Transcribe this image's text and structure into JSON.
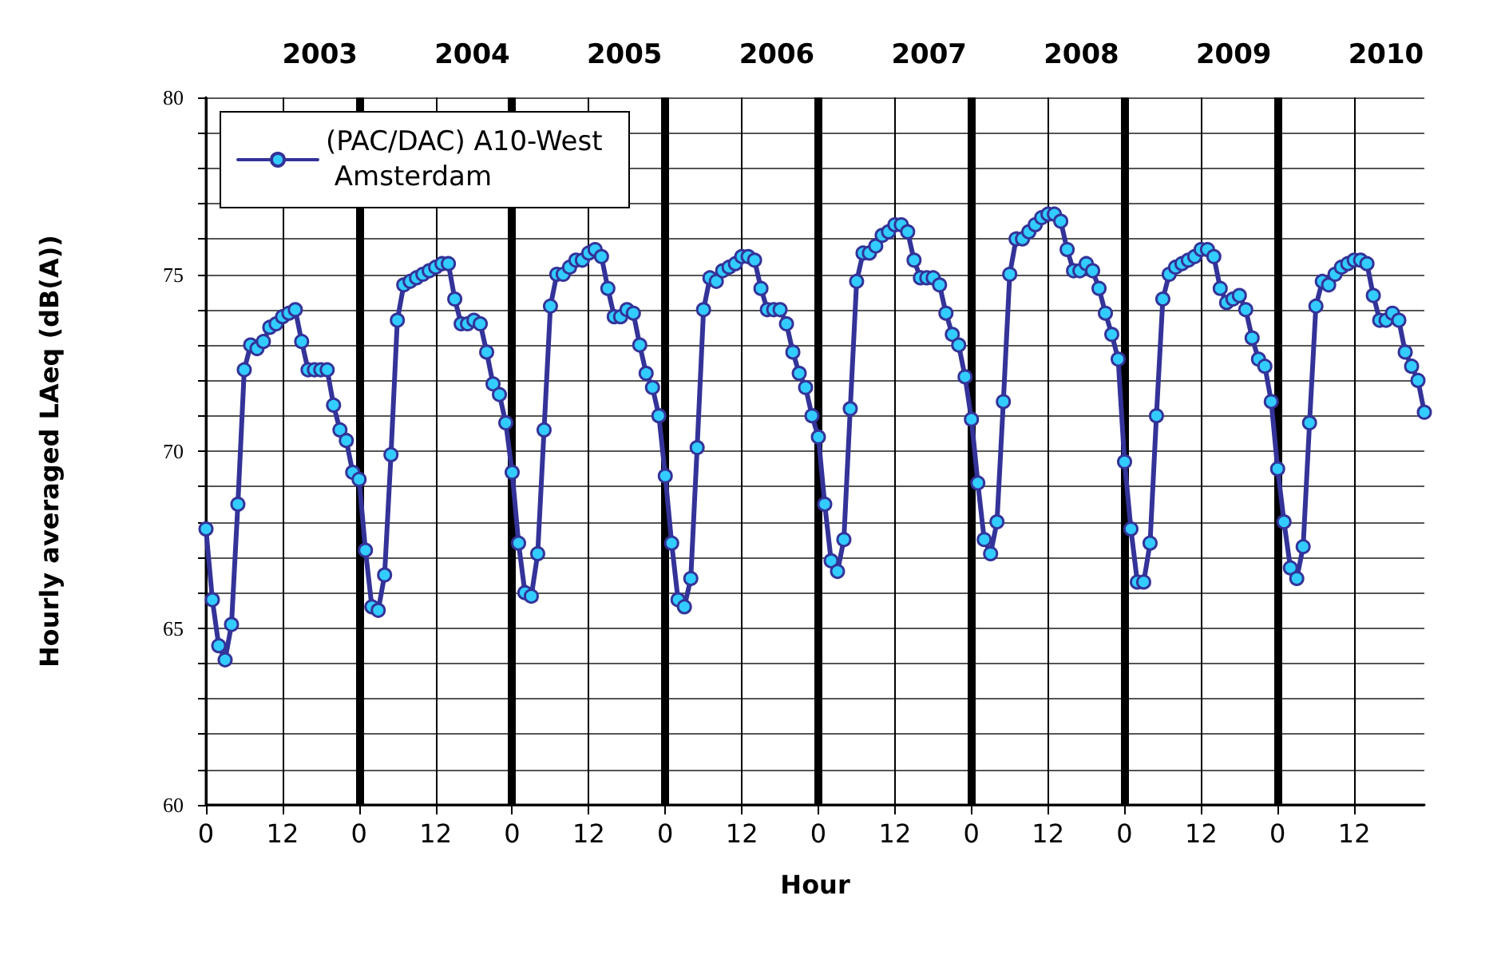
{
  "chart_data": {
    "type": "line",
    "xlabel": "Hour",
    "ylabel": "Hourly averaged LAeq (dB(A))",
    "annotations": [
      "2003",
      "2004",
      "2005",
      "2006",
      "2007",
      "2008",
      "2009",
      "2010"
    ],
    "categories": [
      "0",
      null,
      null,
      null,
      null,
      null,
      null,
      null,
      null,
      null,
      null,
      null,
      "12",
      null,
      null,
      null,
      null,
      null,
      null,
      null,
      null,
      null,
      null,
      null,
      "0",
      null,
      null,
      null,
      null,
      null,
      null,
      null,
      null,
      null,
      null,
      null,
      "12",
      null,
      null,
      null,
      null,
      null,
      null,
      null,
      null,
      null,
      null,
      null,
      "0",
      null,
      null,
      null,
      null,
      null,
      null,
      null,
      null,
      null,
      null,
      null,
      "12",
      null,
      null,
      null,
      null,
      null,
      null,
      null,
      null,
      null,
      null,
      null,
      "0",
      null,
      null,
      null,
      null,
      null,
      null,
      null,
      null,
      null,
      null,
      null,
      "12",
      null,
      null,
      null,
      null,
      null,
      null,
      null,
      null,
      null,
      null,
      null,
      "0",
      null,
      null,
      null,
      null,
      null,
      null,
      null,
      null,
      null,
      null,
      null,
      "12",
      null,
      null,
      null,
      null,
      null,
      null,
      null,
      null,
      null,
      null,
      null,
      "0",
      null,
      null,
      null,
      null,
      null,
      null,
      null,
      null,
      null,
      null,
      null,
      "12",
      null,
      null,
      null,
      null,
      null,
      null,
      null,
      null,
      null,
      null,
      null,
      "0",
      null,
      null,
      null,
      null,
      null,
      null,
      null,
      null,
      null,
      null,
      null,
      "12",
      null,
      null,
      null,
      null,
      null,
      null,
      null,
      null,
      null,
      null,
      null,
      "0",
      null,
      null,
      null,
      null,
      null,
      null,
      null,
      null,
      null,
      null,
      null,
      "12",
      null,
      null,
      null,
      null,
      null,
      null,
      null,
      null,
      null,
      null,
      null
    ],
    "series": [
      {
        "name": "(PAC/DAC) A10-West Amsterdam",
        "color": "#333399",
        "values": [
          67.8,
          65.8,
          64.5,
          64.1,
          65.1,
          68.5,
          72.3,
          73.0,
          72.9,
          73.1,
          73.5,
          73.6,
          73.8,
          73.9,
          74.0,
          73.1,
          72.3,
          72.3,
          72.3,
          72.3,
          71.3,
          70.6,
          70.3,
          69.4,
          69.2,
          67.2,
          65.6,
          65.5,
          66.5,
          69.9,
          73.7,
          74.7,
          74.8,
          74.9,
          75.0,
          75.1,
          75.2,
          75.3,
          75.3,
          74.3,
          73.6,
          73.6,
          73.7,
          73.6,
          72.8,
          71.9,
          71.6,
          70.8,
          69.4,
          67.4,
          66.0,
          65.9,
          67.1,
          70.6,
          74.1,
          75.0,
          75.0,
          75.2,
          75.4,
          75.4,
          75.6,
          75.7,
          75.5,
          74.6,
          73.8,
          73.8,
          74.0,
          73.9,
          73.0,
          72.2,
          71.8,
          71.0,
          69.3,
          67.4,
          65.8,
          65.6,
          66.4,
          70.1,
          74.0,
          74.9,
          74.8,
          75.1,
          75.2,
          75.3,
          75.5,
          75.5,
          75.4,
          74.6,
          74.0,
          74.0,
          74.0,
          73.6,
          72.8,
          72.2,
          71.8,
          71.0,
          70.4,
          68.5,
          66.9,
          66.6,
          67.5,
          71.2,
          74.8,
          75.6,
          75.6,
          75.8,
          76.1,
          76.2,
          76.4,
          76.4,
          76.2,
          75.4,
          74.9,
          74.9,
          74.9,
          74.7,
          73.9,
          73.3,
          73.0,
          72.1,
          70.9,
          69.1,
          67.5,
          67.1,
          68.0,
          71.4,
          75.0,
          76.0,
          76.0,
          76.2,
          76.4,
          76.6,
          76.7,
          76.7,
          76.5,
          75.7,
          75.1,
          75.1,
          75.3,
          75.1,
          74.6,
          73.9,
          73.3,
          72.6,
          69.7,
          67.8,
          66.3,
          66.3,
          67.4,
          71.0,
          74.3,
          75.0,
          75.2,
          75.3,
          75.4,
          75.5,
          75.7,
          75.7,
          75.5,
          74.6,
          74.2,
          74.3,
          74.4,
          74.0,
          73.2,
          72.6,
          72.4,
          71.4,
          69.5,
          68.0,
          66.7,
          66.4,
          67.3,
          70.8,
          74.1,
          74.8,
          74.7,
          75.0,
          75.2,
          75.3,
          75.4,
          75.4,
          75.3,
          74.4,
          73.7,
          73.7,
          73.9,
          73.7,
          72.8,
          72.4,
          72.0,
          71.1
        ]
      }
    ],
    "ylim": [
      60,
      80
    ],
    "yticks": [
      60,
      {
        "value": 61,
        "label": null
      },
      {
        "value": 62,
        "label": null
      },
      {
        "value": 63,
        "label": null
      },
      {
        "value": 64,
        "label": null
      },
      65,
      {
        "value": 66,
        "label": null
      },
      {
        "value": 67,
        "label": null
      },
      {
        "value": 68,
        "label": null
      },
      {
        "value": 69,
        "label": null
      },
      70,
      {
        "value": 71,
        "label": null
      },
      {
        "value": 72,
        "label": null
      },
      {
        "value": 73,
        "label": null
      },
      {
        "value": 74,
        "label": null
      },
      75,
      {
        "value": 76,
        "label": null
      },
      {
        "value": 77,
        "label": null
      },
      {
        "value": 78,
        "label": null
      },
      {
        "value": 79,
        "label": null
      },
      80
    ],
    "grid": true,
    "legend": "top left",
    "marker": "circle",
    "line_style": "solid"
  }
}
